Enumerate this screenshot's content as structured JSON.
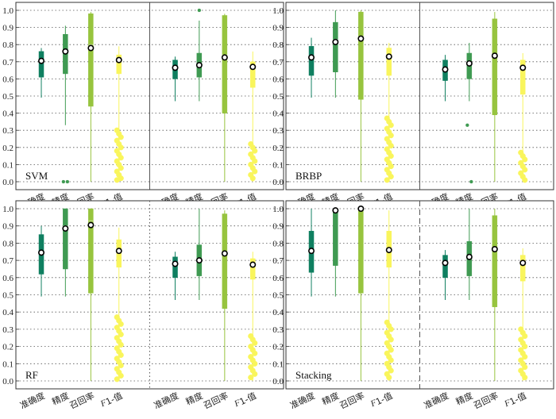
{
  "chart_data": {
    "type": "box",
    "categories": [
      "准确度",
      "精度",
      "召回率",
      "F1-值"
    ],
    "category_label_parts": [
      {
        "italic": "",
        "rest": "准确度"
      },
      {
        "italic": "",
        "rest": "精度"
      },
      {
        "italic": "",
        "rest": "召回率"
      },
      {
        "italic": "F",
        "rest": "1-值"
      }
    ],
    "category_colors": [
      "#0f7f60",
      "#3f9a52",
      "#97c43e",
      "#f9f55c"
    ],
    "ylim": [
      0.0,
      1.0
    ],
    "yticks": [
      "0.0",
      "0.1",
      "0.2",
      "0.3",
      "0.4",
      "0.5",
      "0.6",
      "0.7",
      "0.8",
      "0.9",
      "1.0"
    ],
    "panels": [
      {
        "title": "SVM",
        "divider": "solid",
        "groups": [
          [
            {
              "min": 0.49,
              "q1": 0.61,
              "median": 0.7,
              "q3": 0.76,
              "max": 0.78,
              "mean": 0.705,
              "outliers": []
            },
            {
              "min": 0.33,
              "q1": 0.63,
              "median": 0.76,
              "q3": 0.86,
              "max": 0.91,
              "mean": 0.76,
              "outliers": [
                0.0,
                0.0
              ]
            },
            {
              "min": 0.0,
              "q1": 0.44,
              "median": 0.8,
              "q3": 0.98,
              "max": 0.99,
              "mean": 0.78,
              "outliers": []
            },
            {
              "min": 0.0,
              "q1": 0.63,
              "median": 0.71,
              "q3": 0.74,
              "max": 0.79,
              "mean": 0.71,
              "outliers": [
                0.3,
                0.28,
                0.26,
                0.24,
                0.22,
                0.2,
                0.18,
                0.16,
                0.14,
                0.12,
                0.1,
                0.08,
                0.06,
                0.04,
                0.02,
                0.01
              ]
            }
          ],
          [
            {
              "min": 0.47,
              "q1": 0.6,
              "median": 0.67,
              "q3": 0.71,
              "max": 0.73,
              "mean": 0.665,
              "outliers": []
            },
            {
              "min": 0.47,
              "q1": 0.61,
              "median": 0.68,
              "q3": 0.75,
              "max": 0.94,
              "mean": 0.68,
              "outliers": [
                1.0
              ]
            },
            {
              "min": 0.0,
              "q1": 0.4,
              "median": 0.74,
              "q3": 0.97,
              "max": 0.98,
              "mean": 0.725,
              "outliers": []
            },
            {
              "min": 0.0,
              "q1": 0.55,
              "median": 0.67,
              "q3": 0.7,
              "max": 0.76,
              "mean": 0.67,
              "outliers": [
                0.22,
                0.2,
                0.18,
                0.16,
                0.14,
                0.12,
                0.1,
                0.08,
                0.06,
                0.04,
                0.02
              ]
            }
          ]
        ]
      },
      {
        "title": "BRBP",
        "divider": "solid",
        "groups": [
          [
            {
              "min": 0.49,
              "q1": 0.62,
              "median": 0.72,
              "q3": 0.79,
              "max": 0.84,
              "mean": 0.725,
              "outliers": []
            },
            {
              "min": 0.49,
              "q1": 0.64,
              "median": 0.83,
              "q3": 0.93,
              "max": 1.0,
              "mean": 0.815,
              "outliers": []
            },
            {
              "min": 0.0,
              "q1": 0.48,
              "median": 0.85,
              "q3": 0.99,
              "max": 1.0,
              "mean": 0.835,
              "outliers": []
            },
            {
              "min": 0.0,
              "q1": 0.62,
              "median": 0.73,
              "q3": 0.78,
              "max": 0.81,
              "mean": 0.73,
              "outliers": [
                0.37,
                0.35,
                0.33,
                0.31,
                0.29,
                0.27,
                0.25,
                0.23,
                0.21,
                0.19,
                0.17,
                0.15,
                0.13,
                0.11,
                0.09,
                0.07,
                0.05,
                0.03,
                0.01
              ]
            }
          ],
          [
            {
              "min": 0.47,
              "q1": 0.59,
              "median": 0.66,
              "q3": 0.71,
              "max": 0.74,
              "mean": 0.655,
              "outliers": []
            },
            {
              "min": 0.47,
              "q1": 0.6,
              "median": 0.69,
              "q3": 0.75,
              "max": 0.81,
              "mean": 0.69,
              "outliers": [
                0.33,
                0.0
              ]
            },
            {
              "min": 0.0,
              "q1": 0.39,
              "median": 0.73,
              "q3": 0.95,
              "max": 0.99,
              "mean": 0.735,
              "outliers": []
            },
            {
              "min": 0.0,
              "q1": 0.51,
              "median": 0.67,
              "q3": 0.71,
              "max": 0.75,
              "mean": 0.665,
              "outliers": [
                0.17,
                0.15,
                0.13,
                0.11,
                0.09,
                0.07,
                0.05,
                0.03,
                0.01
              ]
            }
          ]
        ]
      },
      {
        "title": "RF",
        "divider": "dotted",
        "groups": [
          [
            {
              "min": 0.49,
              "q1": 0.62,
              "median": 0.74,
              "q3": 0.85,
              "max": 0.9,
              "mean": 0.745,
              "outliers": []
            },
            {
              "min": 0.49,
              "q1": 0.65,
              "median": 0.9,
              "q3": 1.0,
              "max": 1.0,
              "mean": 0.885,
              "outliers": []
            },
            {
              "min": 0.0,
              "q1": 0.51,
              "median": 0.93,
              "q3": 1.0,
              "max": 1.0,
              "mean": 0.905,
              "outliers": []
            },
            {
              "min": 0.0,
              "q1": 0.66,
              "median": 0.75,
              "q3": 0.82,
              "max": 0.89,
              "mean": 0.755,
              "outliers": [
                0.37,
                0.35,
                0.33,
                0.31,
                0.29,
                0.27,
                0.25,
                0.23,
                0.21,
                0.19,
                0.17,
                0.15,
                0.13,
                0.11,
                0.09,
                0.07,
                0.05,
                0.03,
                0.01
              ]
            }
          ],
          [
            {
              "min": 0.47,
              "q1": 0.6,
              "median": 0.68,
              "q3": 0.72,
              "max": 0.75,
              "mean": 0.68,
              "outliers": []
            },
            {
              "min": 0.47,
              "q1": 0.61,
              "median": 0.7,
              "q3": 0.79,
              "max": 1.0,
              "mean": 0.7,
              "outliers": []
            },
            {
              "min": 0.0,
              "q1": 0.42,
              "median": 0.75,
              "q3": 0.97,
              "max": 0.99,
              "mean": 0.74,
              "outliers": []
            },
            {
              "min": 0.0,
              "q1": 0.59,
              "median": 0.68,
              "q3": 0.71,
              "max": 0.75,
              "mean": 0.675,
              "outliers": [
                0.26,
                0.24,
                0.22,
                0.2,
                0.18,
                0.16,
                0.14,
                0.12,
                0.1,
                0.08,
                0.06,
                0.04,
                0.02
              ]
            }
          ]
        ]
      },
      {
        "title": "Stacking",
        "divider": "dashed",
        "groups": [
          [
            {
              "min": 0.49,
              "q1": 0.63,
              "median": 0.76,
              "q3": 0.87,
              "max": 1.0,
              "mean": 0.755,
              "outliers": []
            },
            {
              "min": 0.49,
              "q1": 0.67,
              "median": 1.0,
              "q3": 1.0,
              "max": 1.0,
              "mean": 0.99,
              "outliers": []
            },
            {
              "min": 0.0,
              "q1": 0.51,
              "median": 1.0,
              "q3": 1.0,
              "max": 1.0,
              "mean": 1.0,
              "outliers": []
            },
            {
              "min": 0.0,
              "q1": 0.66,
              "median": 0.76,
              "q3": 0.87,
              "max": 0.99,
              "mean": 0.76,
              "outliers": [
                0.34,
                0.32,
                0.3,
                0.28,
                0.26,
                0.24,
                0.22,
                0.2,
                0.18,
                0.16,
                0.14,
                0.12,
                0.1,
                0.08,
                0.06,
                0.04,
                0.02
              ]
            }
          ],
          [
            {
              "min": 0.47,
              "q1": 0.6,
              "median": 0.69,
              "q3": 0.73,
              "max": 0.76,
              "mean": 0.685,
              "outliers": []
            },
            {
              "min": 0.47,
              "q1": 0.61,
              "median": 0.72,
              "q3": 0.81,
              "max": 1.0,
              "mean": 0.72,
              "outliers": []
            },
            {
              "min": 0.0,
              "q1": 0.43,
              "median": 0.77,
              "q3": 0.96,
              "max": 1.0,
              "mean": 0.765,
              "outliers": []
            },
            {
              "min": 0.0,
              "q1": 0.58,
              "median": 0.69,
              "q3": 0.73,
              "max": 0.77,
              "mean": 0.685,
              "outliers": [
                0.3,
                0.28,
                0.26,
                0.24,
                0.22,
                0.2,
                0.18,
                0.16,
                0.14,
                0.12,
                0.1,
                0.08,
                0.06,
                0.04,
                0.02
              ]
            }
          ]
        ]
      }
    ]
  }
}
